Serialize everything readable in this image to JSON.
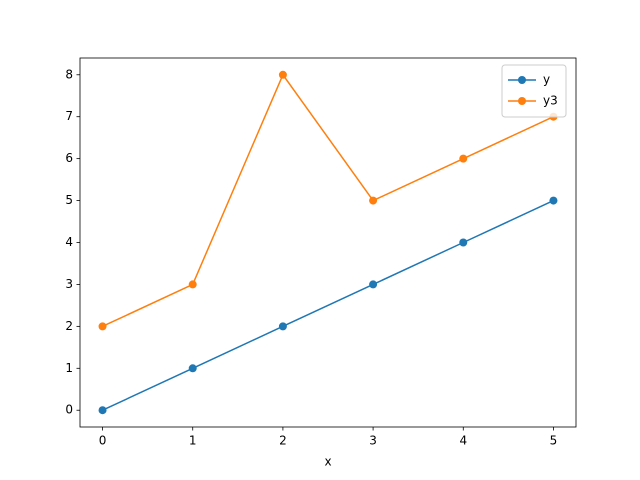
{
  "chart_data": {
    "type": "line",
    "xlabel": "x",
    "x": [
      0,
      1,
      2,
      3,
      4,
      5
    ],
    "series": [
      {
        "name": "y",
        "color": "#1f77b4",
        "values": [
          0,
          1,
          2,
          3,
          4,
          5
        ]
      },
      {
        "name": "y3",
        "color": "#ff7f0e",
        "values": [
          2,
          3,
          8,
          5,
          6,
          7
        ]
      }
    ],
    "xlim": [
      -0.25,
      5.25
    ],
    "ylim": [
      -0.4,
      8.4
    ],
    "xticks": [
      0,
      1,
      2,
      3,
      4,
      5
    ],
    "yticks": [
      0,
      1,
      2,
      3,
      4,
      5,
      6,
      7,
      8
    ],
    "legend": "upper right",
    "marker": "circle"
  }
}
